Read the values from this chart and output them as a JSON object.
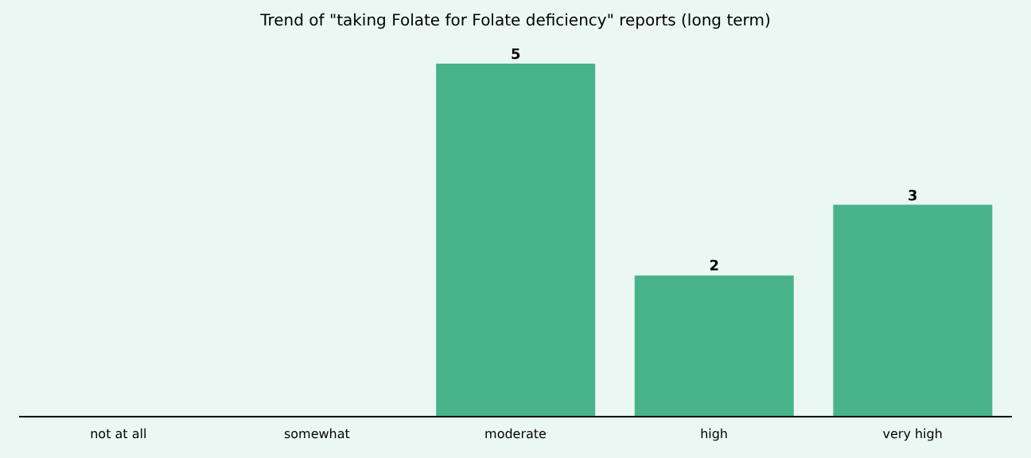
{
  "chart_data": {
    "type": "bar",
    "title": "Trend of \"taking Folate for Folate deficiency\" reports (long term)",
    "categories": [
      "not at all",
      "somewhat",
      "moderate",
      "high",
      "very high"
    ],
    "values": [
      0,
      0,
      5,
      2,
      3
    ],
    "value_labels": [
      null,
      null,
      "5",
      "2",
      "3"
    ],
    "color": "#48b38a",
    "tick_labels": "x"
  }
}
